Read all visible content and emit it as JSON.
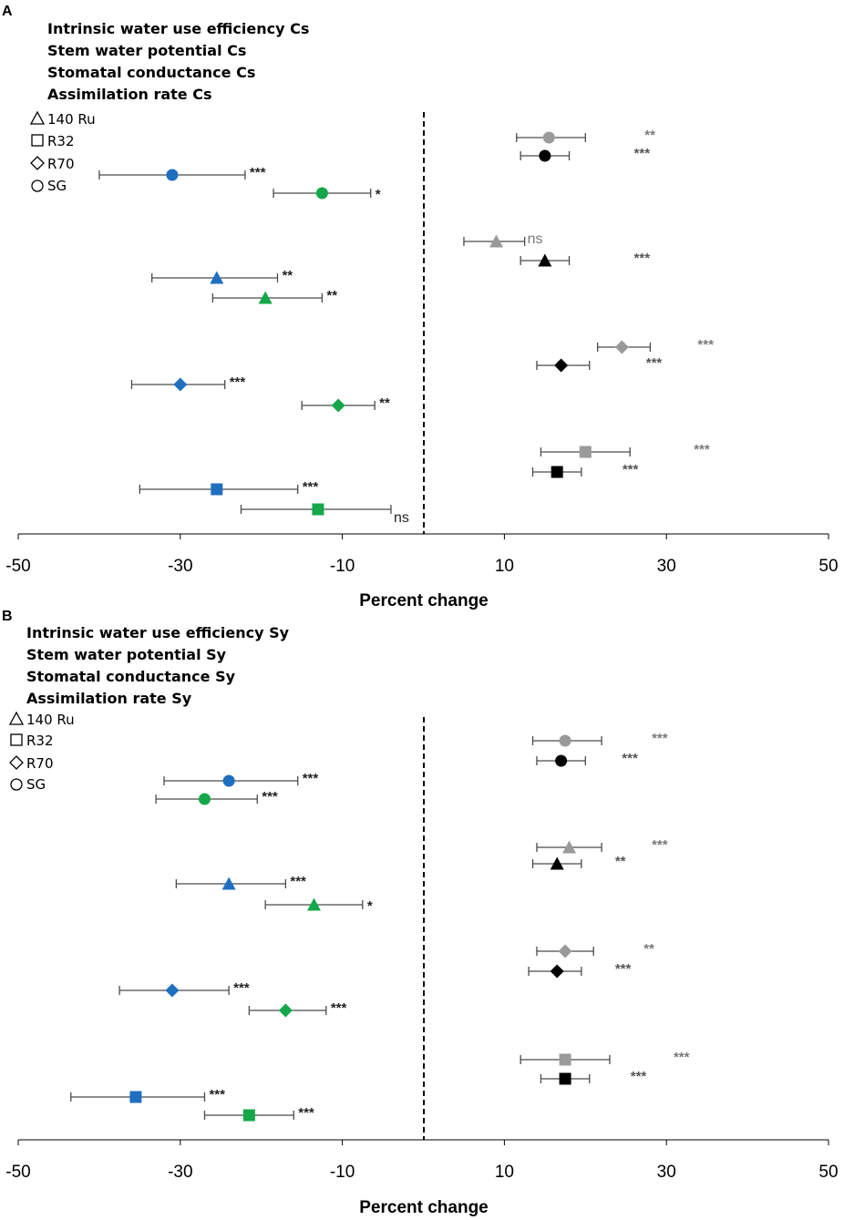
{
  "colors": {
    "iwue": "#9a9a9a",
    "swp": "#000000",
    "gs": "#1f6fbf",
    "an": "#14a84a",
    "errorbar": "#4a4a4a"
  },
  "chart_data": [
    {
      "type": "scatter",
      "panel": "A",
      "xlabel": "Percent change",
      "xlim": [
        -50,
        50
      ],
      "xticks": [
        "-50",
        "-30",
        "-10",
        "10",
        "30",
        "50"
      ],
      "reference_line_x": 0,
      "legend_variables": [
        {
          "key": "iwue",
          "label": "Intrinsic water use efficiency Cs"
        },
        {
          "key": "swp",
          "label": "Stem water potential Cs"
        },
        {
          "key": "gs",
          "label": "Stomatal conductance Cs"
        },
        {
          "key": "an",
          "label": "Assimilation rate Cs"
        }
      ],
      "legend_shapes": [
        {
          "marker": "triangle",
          "label": "140 Ru"
        },
        {
          "marker": "square",
          "label": "R32"
        },
        {
          "marker": "diamond",
          "label": "R70"
        },
        {
          "marker": "circle",
          "label": "SG"
        }
      ],
      "groups": [
        {
          "rootstock": "SG",
          "marker": "circle",
          "points": [
            {
              "var": "iwue",
              "value": 15.5,
              "lo": 11.5,
              "hi": 20.0,
              "sig": "**"
            },
            {
              "var": "swp",
              "value": 15.0,
              "lo": 12.0,
              "hi": 18.0,
              "sig": "***"
            },
            {
              "var": "gs",
              "value": -31.0,
              "lo": -40.0,
              "hi": -22.0,
              "sig": "***"
            },
            {
              "var": "an",
              "value": -12.5,
              "lo": -18.5,
              "hi": -6.5,
              "sig": "*"
            }
          ]
        },
        {
          "rootstock": "140 Ru",
          "marker": "triangle",
          "points": [
            {
              "var": "iwue",
              "value": 9.0,
              "lo": 5.0,
              "hi": 12.5,
              "sig": "ns"
            },
            {
              "var": "swp",
              "value": 15.0,
              "lo": 12.0,
              "hi": 18.0,
              "sig": "***"
            },
            {
              "var": "gs",
              "value": -25.5,
              "lo": -33.5,
              "hi": -18.0,
              "sig": "**"
            },
            {
              "var": "an",
              "value": -19.5,
              "lo": -26.0,
              "hi": -12.5,
              "sig": "**"
            }
          ]
        },
        {
          "rootstock": "R70",
          "marker": "diamond",
          "points": [
            {
              "var": "iwue",
              "value": 24.5,
              "lo": 21.5,
              "hi": 28.0,
              "sig": "***"
            },
            {
              "var": "swp",
              "value": 17.0,
              "lo": 14.0,
              "hi": 20.5,
              "sig": "***"
            },
            {
              "var": "gs",
              "value": -30.0,
              "lo": -36.0,
              "hi": -24.5,
              "sig": "***"
            },
            {
              "var": "an",
              "value": -10.5,
              "lo": -15.0,
              "hi": -6.0,
              "sig": "**"
            }
          ]
        },
        {
          "rootstock": "R32",
          "marker": "square",
          "points": [
            {
              "var": "iwue",
              "value": 20.0,
              "lo": 14.5,
              "hi": 25.5,
              "sig": "***"
            },
            {
              "var": "swp",
              "value": 16.5,
              "lo": 13.5,
              "hi": 19.5,
              "sig": "***"
            },
            {
              "var": "gs",
              "value": -25.5,
              "lo": -35.0,
              "hi": -15.5,
              "sig": "***"
            },
            {
              "var": "an",
              "value": -13.0,
              "lo": -22.5,
              "hi": -4.0,
              "sig": "ns"
            }
          ]
        }
      ]
    },
    {
      "type": "scatter",
      "panel": "B",
      "xlabel": "Percent change",
      "xlim": [
        -50,
        50
      ],
      "xticks": [
        "-50",
        "-30",
        "-10",
        "10",
        "30",
        "50"
      ],
      "reference_line_x": 0,
      "legend_variables": [
        {
          "key": "iwue",
          "label": "Intrinsic water use efficiency Sy"
        },
        {
          "key": "swp",
          "label": "Stem water potential Sy"
        },
        {
          "key": "gs",
          "label": "Stomatal conductance Sy"
        },
        {
          "key": "an",
          "label": "Assimilation rate Sy"
        }
      ],
      "legend_shapes": [
        {
          "marker": "triangle",
          "label": "140 Ru"
        },
        {
          "marker": "square",
          "label": "R32"
        },
        {
          "marker": "diamond",
          "label": "R70"
        },
        {
          "marker": "circle",
          "label": "SG"
        }
      ],
      "groups": [
        {
          "rootstock": "SG",
          "marker": "circle",
          "points": [
            {
              "var": "iwue",
              "value": 17.5,
              "lo": 13.5,
              "hi": 22.0,
              "sig": "***"
            },
            {
              "var": "swp",
              "value": 17.0,
              "lo": 14.0,
              "hi": 20.0,
              "sig": "***"
            },
            {
              "var": "gs",
              "value": -24.0,
              "lo": -32.0,
              "hi": -15.5,
              "sig": "***"
            },
            {
              "var": "an",
              "value": -27.0,
              "lo": -33.0,
              "hi": -20.5,
              "sig": "***"
            }
          ]
        },
        {
          "rootstock": "140 Ru",
          "marker": "triangle",
          "points": [
            {
              "var": "iwue",
              "value": 18.0,
              "lo": 14.0,
              "hi": 22.0,
              "sig": "***"
            },
            {
              "var": "swp",
              "value": 16.5,
              "lo": 13.5,
              "hi": 19.5,
              "sig": "**"
            },
            {
              "var": "gs",
              "value": -24.0,
              "lo": -30.5,
              "hi": -17.0,
              "sig": "***"
            },
            {
              "var": "an",
              "value": -13.5,
              "lo": -19.5,
              "hi": -7.5,
              "sig": "*"
            }
          ]
        },
        {
          "rootstock": "R70",
          "marker": "diamond",
          "points": [
            {
              "var": "iwue",
              "value": 17.5,
              "lo": 14.0,
              "hi": 21.0,
              "sig": "**"
            },
            {
              "var": "swp",
              "value": 16.5,
              "lo": 13.0,
              "hi": 19.5,
              "sig": "***"
            },
            {
              "var": "gs",
              "value": -31.0,
              "lo": -37.5,
              "hi": -24.0,
              "sig": "***"
            },
            {
              "var": "an",
              "value": -17.0,
              "lo": -21.5,
              "hi": -12.0,
              "sig": "***"
            }
          ]
        },
        {
          "rootstock": "R32",
          "marker": "square",
          "points": [
            {
              "var": "iwue",
              "value": 17.5,
              "lo": 12.0,
              "hi": 23.0,
              "sig": "***"
            },
            {
              "var": "swp",
              "value": 17.5,
              "lo": 14.5,
              "hi": 20.5,
              "sig": "***"
            },
            {
              "var": "gs",
              "value": -35.5,
              "lo": -43.5,
              "hi": -27.0,
              "sig": "***"
            },
            {
              "var": "an",
              "value": -21.5,
              "lo": -27.0,
              "hi": -16.0,
              "sig": "***"
            }
          ]
        }
      ]
    }
  ]
}
